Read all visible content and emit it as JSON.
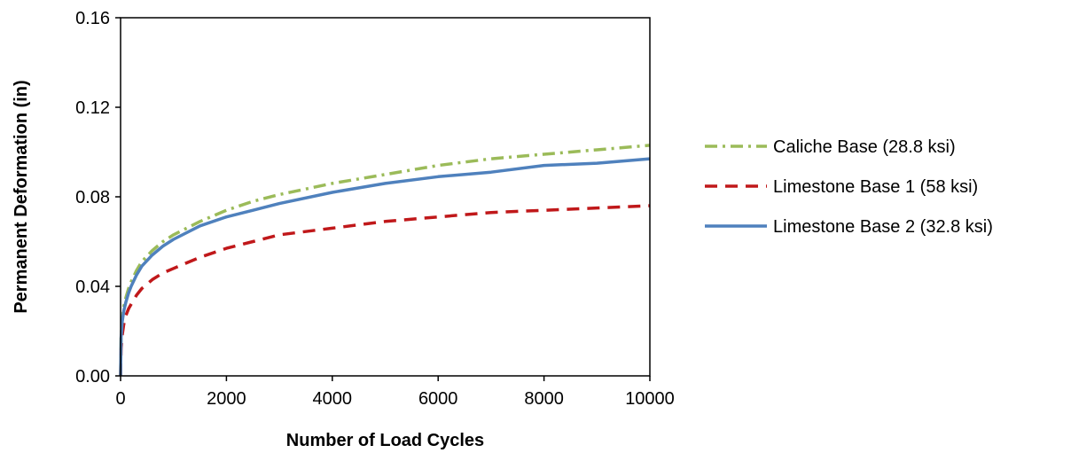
{
  "chart_data": {
    "type": "line",
    "xlabel": "Number of Load Cycles",
    "ylabel": "Permanent Deformation (in)",
    "xlim": [
      0,
      10000
    ],
    "ylim": [
      0,
      0.16
    ],
    "x_ticks": [
      "0",
      "2000",
      "4000",
      "6000",
      "8000",
      "10000"
    ],
    "y_ticks": [
      "0.00",
      "0.04",
      "0.08",
      "0.12",
      "0.16"
    ],
    "grid": false,
    "legend_position": "right",
    "series": [
      {
        "name": "Caliche Base (28.8 ksi)",
        "color": "#9BBB59",
        "dash": "dash-dot",
        "x": [
          0,
          10,
          30,
          60,
          100,
          150,
          200,
          300,
          400,
          600,
          800,
          1000,
          1500,
          2000,
          2500,
          3000,
          4000,
          5000,
          6000,
          7000,
          8000,
          9000,
          10000
        ],
        "y": [
          0,
          0.017,
          0.025,
          0.031,
          0.035,
          0.039,
          0.042,
          0.047,
          0.051,
          0.056,
          0.06,
          0.063,
          0.069,
          0.074,
          0.078,
          0.081,
          0.086,
          0.09,
          0.094,
          0.097,
          0.099,
          0.101,
          0.103
        ]
      },
      {
        "name": "Limestone Base 1 (58 ksi)",
        "color": "#C0181A",
        "dash": "dashed",
        "x": [
          0,
          10,
          30,
          60,
          100,
          150,
          200,
          300,
          400,
          600,
          800,
          1000,
          1500,
          2000,
          2500,
          3000,
          4000,
          5000,
          6000,
          7000,
          8000,
          9000,
          10000
        ],
        "y": [
          0,
          0.012,
          0.018,
          0.023,
          0.027,
          0.03,
          0.032,
          0.036,
          0.039,
          0.043,
          0.046,
          0.048,
          0.053,
          0.057,
          0.06,
          0.063,
          0.066,
          0.069,
          0.071,
          0.073,
          0.074,
          0.075,
          0.076
        ]
      },
      {
        "name": "Limestone Base 2 (32.8 ksi)",
        "color": "#4F81BD",
        "dash": "solid",
        "x": [
          0,
          10,
          30,
          60,
          100,
          150,
          200,
          300,
          400,
          600,
          800,
          1000,
          1500,
          2000,
          2500,
          3000,
          4000,
          5000,
          6000,
          7000,
          8000,
          9000,
          10000
        ],
        "y": [
          0,
          0.017,
          0.024,
          0.029,
          0.033,
          0.037,
          0.04,
          0.045,
          0.049,
          0.054,
          0.058,
          0.061,
          0.067,
          0.071,
          0.074,
          0.077,
          0.082,
          0.086,
          0.089,
          0.091,
          0.094,
          0.095,
          0.097
        ]
      }
    ]
  }
}
